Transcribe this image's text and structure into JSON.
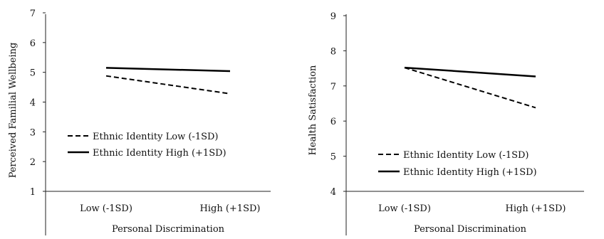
{
  "chart_data": [
    {
      "type": "line",
      "ylabel": "Perceived Familial Wellbeing",
      "xlabel": "Personal Discrimination",
      "categories": [
        "Low (-1SD)",
        "High (+1SD)"
      ],
      "ylim": [
        1,
        7
      ],
      "yticks": [
        1,
        2,
        3,
        4,
        5,
        6,
        7
      ],
      "grid": false,
      "legend_position": "left",
      "series": [
        {
          "name": "Ethnic Identity Low (-1SD)",
          "values": [
            4.88,
            4.28
          ],
          "dash": "dashed",
          "color": "#000000"
        },
        {
          "name": "Ethnic Identity High (+1SD)",
          "values": [
            5.15,
            5.04
          ],
          "dash": "solid",
          "color": "#000000"
        }
      ]
    },
    {
      "type": "line",
      "ylabel": "Health Satisfaction",
      "xlabel": "Personal Discrimination",
      "categories": [
        "Low (-1SD)",
        "High (+1SD)"
      ],
      "ylim": [
        4,
        9
      ],
      "yticks": [
        4,
        5,
        6,
        7,
        8,
        9
      ],
      "grid": false,
      "legend_position": "bottom-left",
      "series": [
        {
          "name": "Ethnic Identity Low (-1SD)",
          "values": [
            7.52,
            6.38
          ],
          "dash": "dashed",
          "color": "#000000"
        },
        {
          "name": "Ethnic Identity High (+1SD)",
          "values": [
            7.52,
            7.27
          ],
          "dash": "solid",
          "color": "#000000"
        }
      ]
    }
  ]
}
